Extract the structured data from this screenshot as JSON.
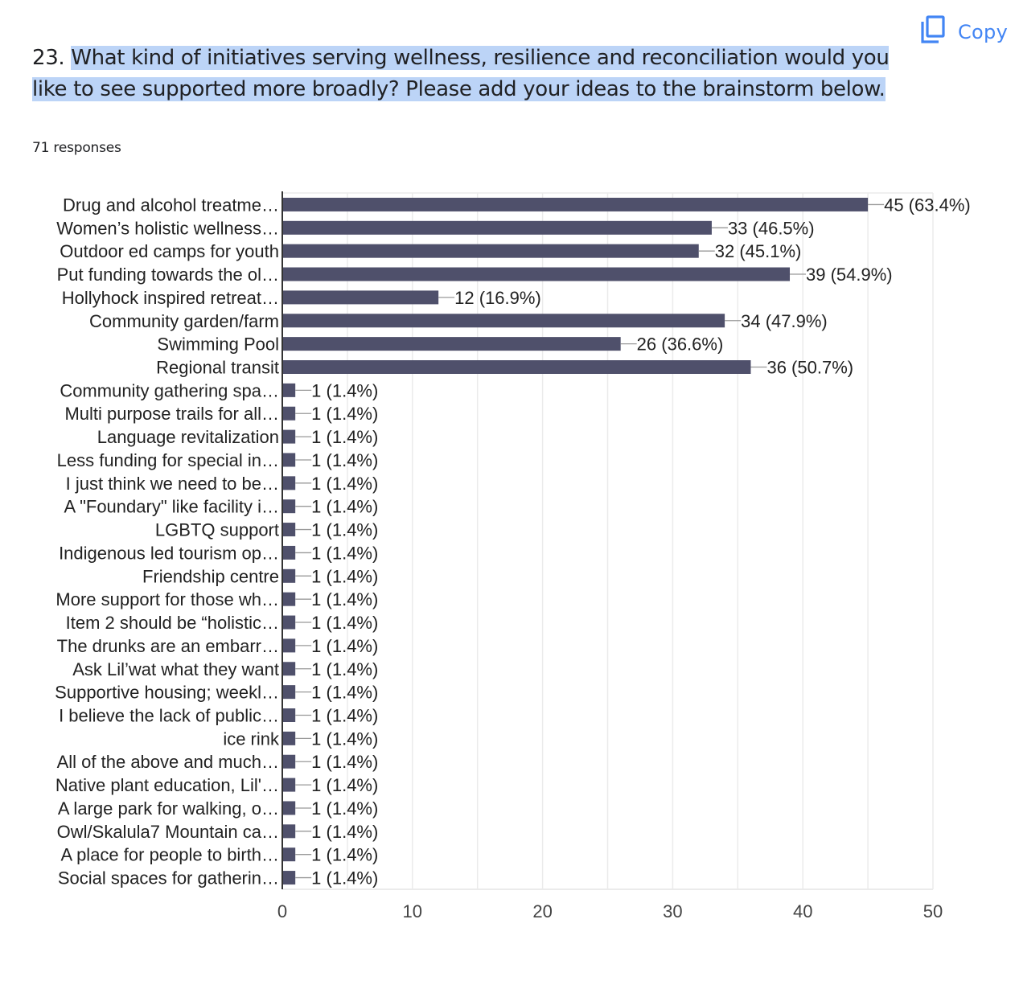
{
  "header": {
    "copy_label": "Copy",
    "copy_icon": "copy-icon",
    "question_number": "23.",
    "question_text_line1": "What kind of initiatives serving wellness, resilience and reconciliation would you",
    "question_text_line2": "like to see supported more broadly? Please add your ideas to the brainstorm below.",
    "response_count": "71 responses"
  },
  "colors": {
    "bar": "#4f506b",
    "accent": "#4285f4",
    "highlight": "#bcd4f7",
    "grid": "#ebebeb",
    "axis": "#333333"
  },
  "chart_data": {
    "type": "bar",
    "orientation": "horizontal",
    "title": "",
    "xlabel": "",
    "ylabel": "",
    "xlim": [
      0,
      50
    ],
    "x_ticks": [
      0,
      10,
      20,
      30,
      40,
      50
    ],
    "x_tick_labels": [
      "0",
      "10",
      "20",
      "30",
      "40",
      "50"
    ],
    "grid": true,
    "categories": [
      "Drug and alcohol treatme…",
      "Women’s holistic wellness…",
      "Outdoor ed camps for youth",
      "Put funding towards the ol…",
      "Hollyhock inspired retreat…",
      "Community garden/farm",
      "Swimming Pool",
      "Regional transit",
      "Community gathering spa…",
      "Multi purpose trails for all…",
      "Language revitalization",
      "Less funding for special in…",
      "I just think we need to be…",
      "A \"Foundary\" like facility i…",
      "LGBTQ support",
      "Indigenous led tourism op…",
      "Friendship centre",
      "More support for those wh…",
      "Item 2 should be “holistic…",
      "The drunks are an embarr…",
      "Ask Lil’wat what they want",
      "Supportive housing; weekl…",
      "I believe the lack of public…",
      "ice rink",
      "All of the above and much…",
      "Native plant education, Lil'…",
      "A large park for walking, o…",
      "Owl/Skalula7 Mountain ca…",
      "A place for people to birth…",
      "Social spaces for gatherin…"
    ],
    "values": [
      45,
      33,
      32,
      39,
      12,
      34,
      26,
      36,
      1,
      1,
      1,
      1,
      1,
      1,
      1,
      1,
      1,
      1,
      1,
      1,
      1,
      1,
      1,
      1,
      1,
      1,
      1,
      1,
      1,
      1
    ],
    "data_labels": [
      "45 (63.4%)",
      "33 (46.5%)",
      "32 (45.1%)",
      "39 (54.9%)",
      "12 (16.9%)",
      "34 (47.9%)",
      "26 (36.6%)",
      "36 (50.7%)",
      "1 (1.4%)",
      "1 (1.4%)",
      "1 (1.4%)",
      "1 (1.4%)",
      "1 (1.4%)",
      "1 (1.4%)",
      "1 (1.4%)",
      "1 (1.4%)",
      "1 (1.4%)",
      "1 (1.4%)",
      "1 (1.4%)",
      "1 (1.4%)",
      "1 (1.4%)",
      "1 (1.4%)",
      "1 (1.4%)",
      "1 (1.4%)",
      "1 (1.4%)",
      "1 (1.4%)",
      "1 (1.4%)",
      "1 (1.4%)",
      "1 (1.4%)",
      "1 (1.4%)"
    ]
  }
}
